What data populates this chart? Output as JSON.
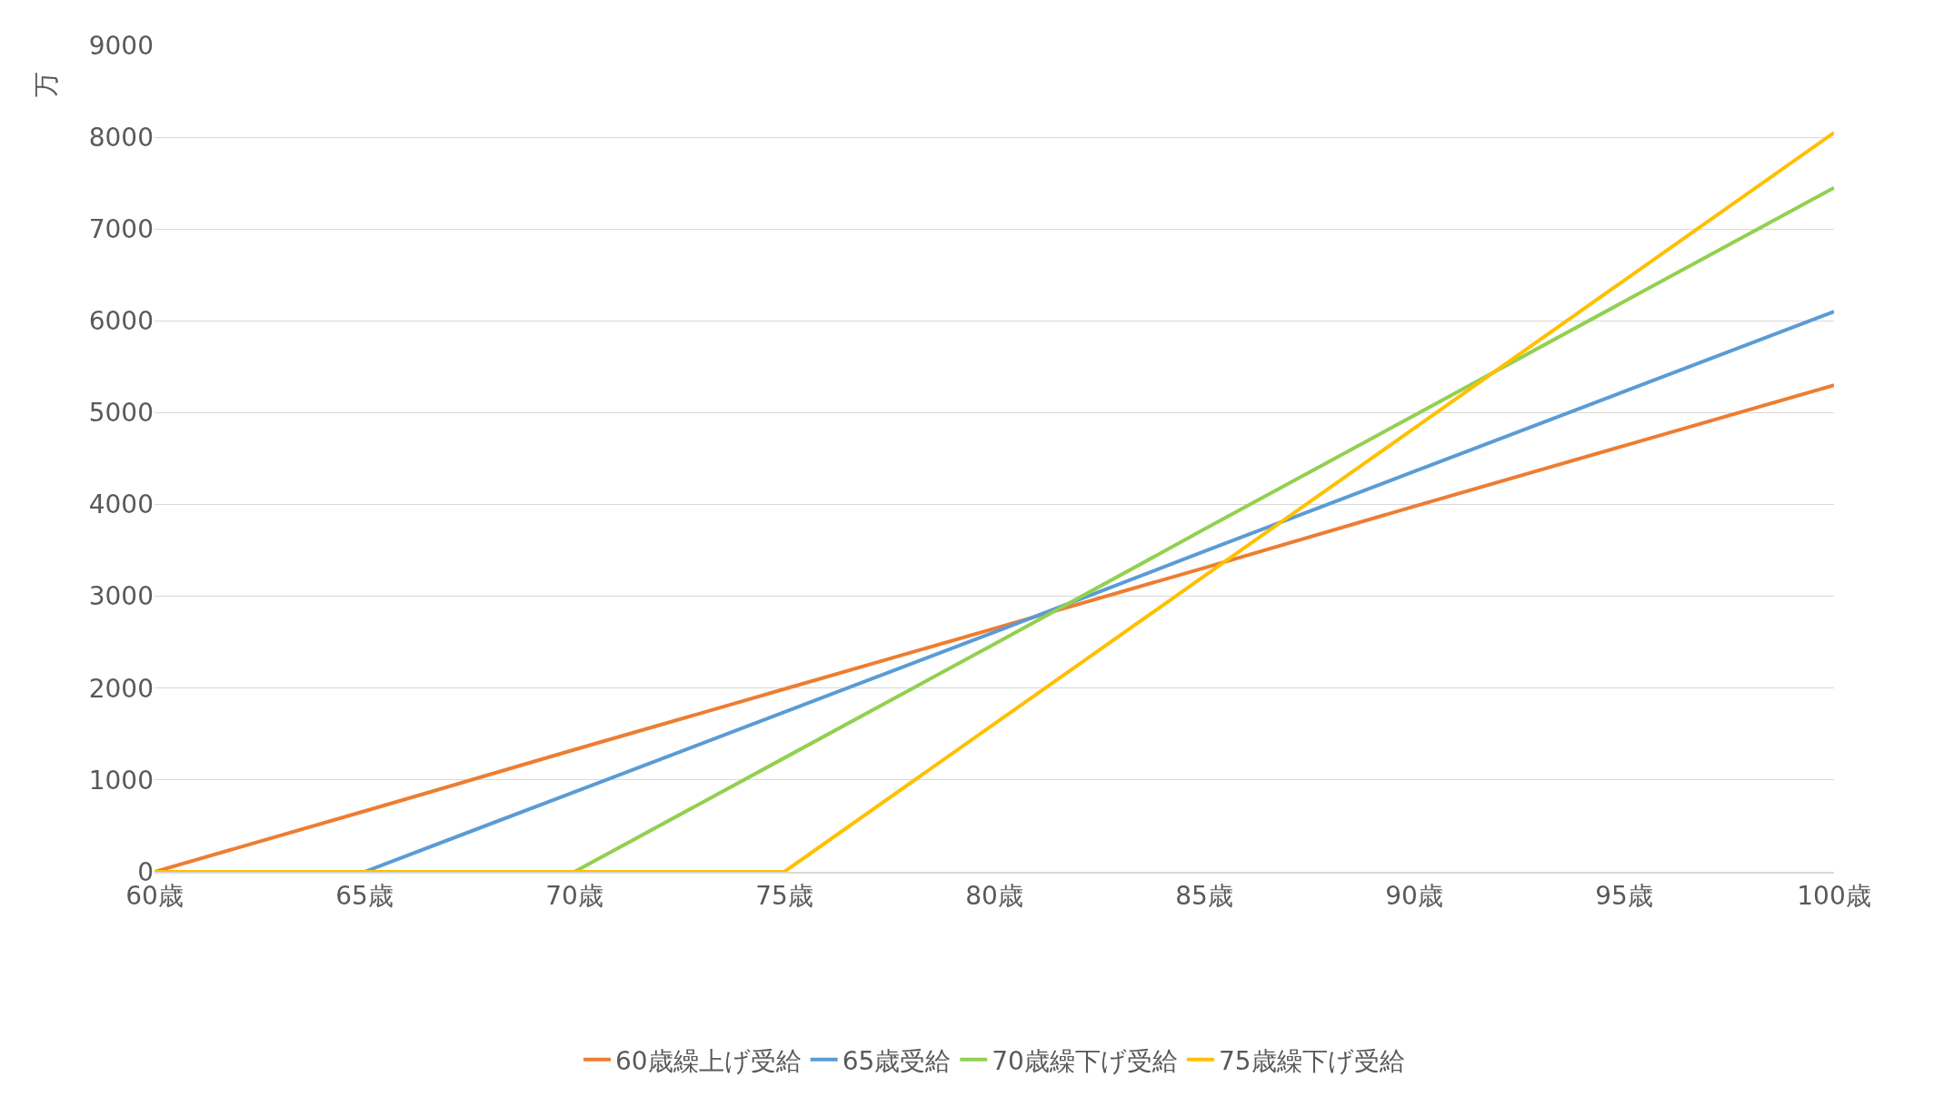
{
  "chart_data": {
    "type": "line",
    "ylabel": "万",
    "xlim": [
      60,
      100
    ],
    "xticks": [
      {
        "value": 60,
        "label": "60歳"
      },
      {
        "value": 65,
        "label": "65歳"
      },
      {
        "value": 70,
        "label": "70歳"
      },
      {
        "value": 75,
        "label": "75歳"
      },
      {
        "value": 80,
        "label": "80歳"
      },
      {
        "value": 85,
        "label": "85歳"
      },
      {
        "value": 90,
        "label": "90歳"
      },
      {
        "value": 95,
        "label": "95歳"
      },
      {
        "value": 100,
        "label": "100歳"
      }
    ],
    "ylim": [
      0,
      9000
    ],
    "yticks": [
      0,
      1000,
      2000,
      3000,
      4000,
      5000,
      6000,
      7000,
      8000,
      9000
    ],
    "grid": "y",
    "legend": "bottom",
    "marker": "none",
    "line_style": "solid",
    "series": [
      {
        "name": "60歳繰上げ受給",
        "color": "#ed7d31",
        "x": [
          60,
          65,
          70,
          75,
          80,
          85,
          90,
          95,
          100
        ],
        "values": [
          0,
          660,
          1330,
          1990,
          2650,
          3310,
          3980,
          4640,
          5300
        ]
      },
      {
        "name": "65歳受給",
        "color": "#5b9bd5",
        "x": [
          65,
          70,
          75,
          80,
          85,
          90,
          95,
          100
        ],
        "values": [
          0,
          870,
          1740,
          2610,
          3490,
          4360,
          5230,
          6100
        ]
      },
      {
        "name": "70歳繰下げ受給",
        "color": "#92d050",
        "x": [
          70,
          75,
          80,
          85,
          90,
          95,
          100
        ],
        "values": [
          0,
          1240,
          2480,
          3730,
          4970,
          6210,
          7450
        ]
      },
      {
        "name": "75歳繰下げ受給",
        "color": "#ffc000",
        "x": [
          60,
          65,
          70,
          75,
          80,
          85,
          90,
          95,
          100
        ],
        "values": [
          0,
          0,
          0,
          0,
          1610,
          3220,
          4830,
          6440,
          8050
        ]
      }
    ]
  }
}
